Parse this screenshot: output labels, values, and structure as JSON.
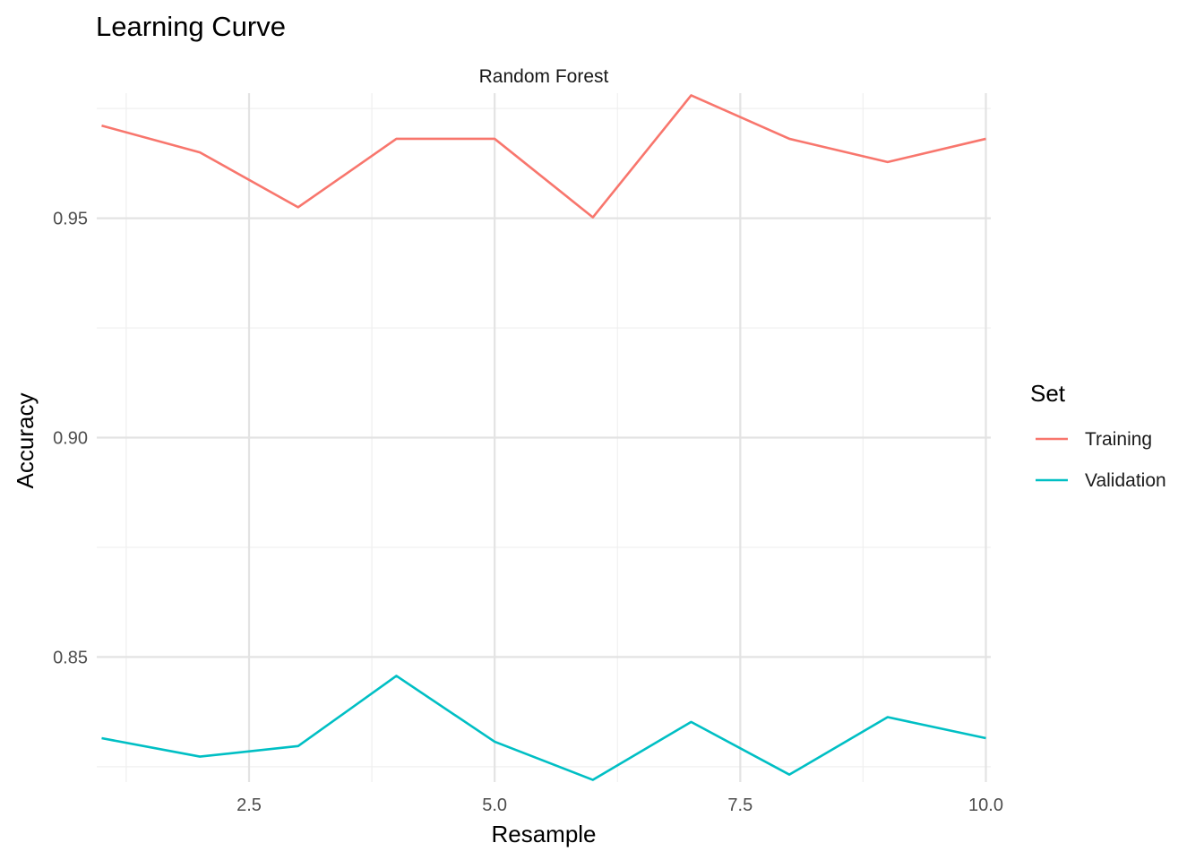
{
  "chart_data": {
    "type": "line",
    "title": "Learning Curve",
    "facet_label": "Random Forest",
    "xlabel": "Resample",
    "ylabel": "Accuracy",
    "x": [
      1,
      2,
      3,
      4,
      5,
      6,
      7,
      8,
      9,
      10
    ],
    "xlim": [
      0.95,
      10.05
    ],
    "ylim": [
      0.8215,
      0.9785
    ],
    "x_ticks": [
      2.5,
      5.0,
      7.5,
      10.0
    ],
    "x_tick_labels": [
      "2.5",
      "5.0",
      "7.5",
      "10.0"
    ],
    "y_ticks": [
      0.85,
      0.9,
      0.95
    ],
    "y_tick_labels": [
      "0.85",
      "0.90",
      "0.95"
    ],
    "grid": true,
    "legend": {
      "title": "Set",
      "position": "right"
    },
    "series": [
      {
        "name": "Training",
        "color": "#F8766D",
        "values": [
          0.9711,
          0.965,
          0.9525,
          0.9681,
          0.9681,
          0.9502,
          0.978,
          0.9681,
          0.9628,
          0.9681
        ]
      },
      {
        "name": "Validation",
        "color": "#00BFC4",
        "values": [
          0.8315,
          0.8273,
          0.8297,
          0.8457,
          0.8307,
          0.822,
          0.8352,
          0.8232,
          0.8363,
          0.8315
        ]
      }
    ]
  }
}
